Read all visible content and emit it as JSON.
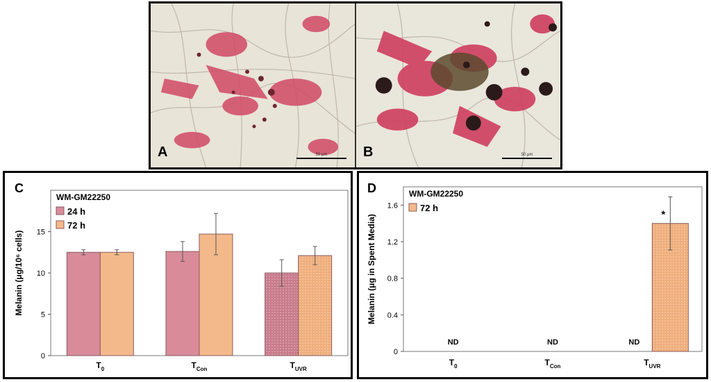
{
  "photos": {
    "panel_a_label": "A",
    "panel_b_label": "B",
    "scalebar_a": "50 μm",
    "scalebar_b": "50 μm"
  },
  "colors": {
    "series_24h": "#D98B9A",
    "series_72h": "#F4B98A",
    "bar_edge": "#8A5A5E",
    "error_bar": "#555555"
  },
  "chart_data": [
    {
      "id": "C",
      "panel_label": "C",
      "type": "bar",
      "legend_title": "WM-GM22250",
      "ylabel": "Melanin (μg/10⁶ cells)",
      "ylim": [
        0,
        20
      ],
      "yticks": [
        0,
        5,
        10,
        15
      ],
      "categories": [
        {
          "main": "T",
          "sub": "0"
        },
        {
          "main": "T",
          "sub": "Con"
        },
        {
          "main": "T",
          "sub": "UVR"
        }
      ],
      "series": [
        {
          "name": "24 h",
          "values": [
            12.5,
            12.6,
            10.0
          ],
          "errors": [
            0.3,
            1.2,
            1.6
          ],
          "pattern": [
            false,
            false,
            true
          ]
        },
        {
          "name": "72 h",
          "values": [
            12.5,
            14.7,
            12.1
          ],
          "errors": [
            0.3,
            2.5,
            1.1
          ],
          "pattern": [
            false,
            false,
            true
          ]
        }
      ],
      "legend_position": "top-left"
    },
    {
      "id": "D",
      "panel_label": "D",
      "type": "bar",
      "legend_title": "WM-GM22250",
      "ylabel": "Melanin (μg in Spent Media)",
      "ylim": [
        0,
        1.8
      ],
      "yticks": [
        "0",
        "0.4",
        "0.8",
        "1.2",
        "1.6"
      ],
      "categories": [
        {
          "main": "T",
          "sub": "0"
        },
        {
          "main": "T",
          "sub": "Con"
        },
        {
          "main": "T",
          "sub": "UVR"
        }
      ],
      "series": [
        {
          "name": "72 h",
          "values": [
            null,
            null,
            1.4
          ],
          "errors": [
            null,
            null,
            0.29
          ],
          "pattern": [
            false,
            false,
            true
          ]
        }
      ],
      "not_detected": {
        "label": "ND",
        "positions": [
          "T0",
          "TCon",
          "TUVR-24h"
        ]
      },
      "significance": {
        "category": "TUVR",
        "label": "*"
      },
      "legend_position": "top-left"
    }
  ]
}
